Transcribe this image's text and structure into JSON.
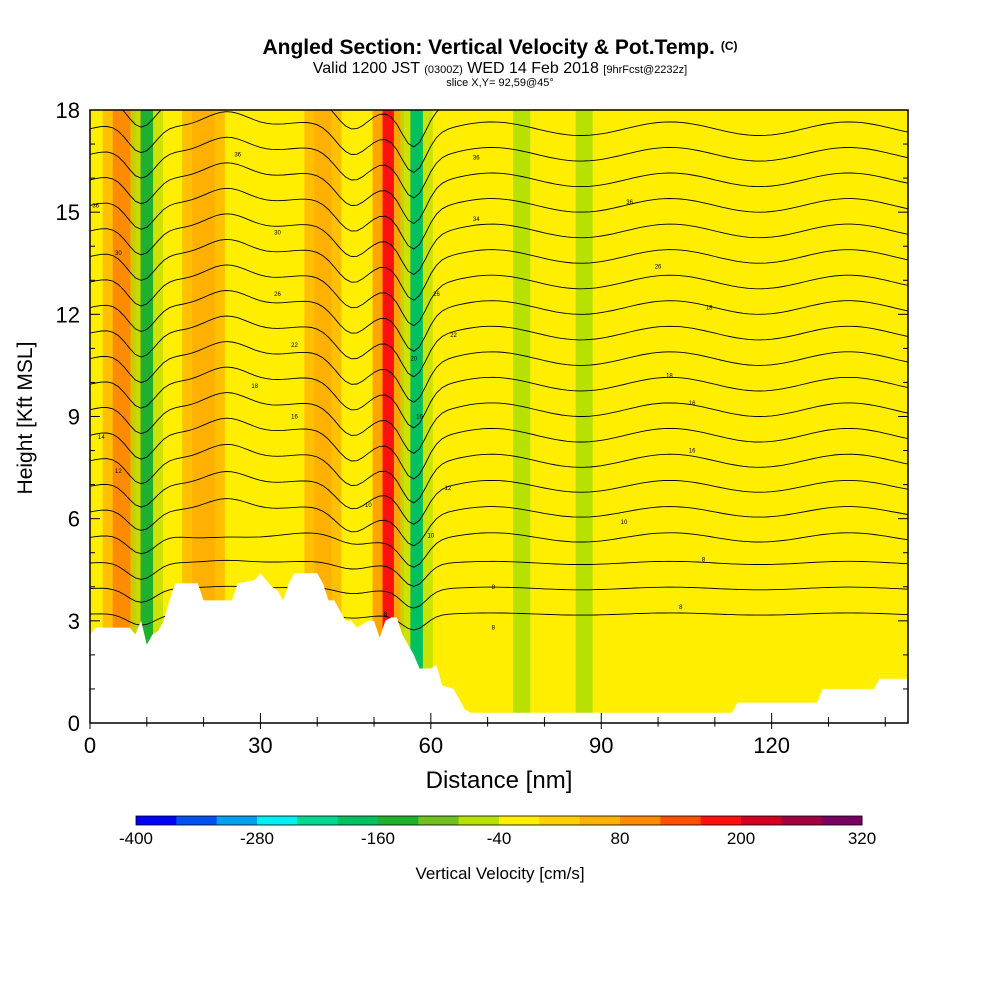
{
  "chart_data": {
    "type": "heatmap",
    "title": "Angled Section: Vertical Velocity & Pot.Temp.",
    "title_unit": "(C)",
    "subtitle_prefix": "Valid 1200 JST",
    "subtitle_utc": "(0300Z)",
    "subtitle_date": "WED 14 Feb 2018",
    "subtitle_fcst": "[9hrFcst@2232z]",
    "slice": "slice X,Y= 92,59@45°",
    "xlabel": "Distance [nm]",
    "ylabel": "Height [Kft MSL]",
    "xlim": [
      0,
      144
    ],
    "ylim": [
      0,
      18
    ],
    "xticks": [
      0,
      30,
      60,
      90,
      120
    ],
    "yticks": [
      0,
      3,
      6,
      9,
      12,
      15,
      18
    ],
    "background_color": "#ffee00",
    "colorbar": {
      "label": "Vertical Velocity [cm/s]",
      "tick_labels": [
        "-400",
        "-280",
        "-160",
        "-40",
        "80",
        "200",
        "320"
      ],
      "levels": [
        -400,
        -360,
        -320,
        -280,
        -240,
        -200,
        -160,
        -120,
        -80,
        -40,
        0,
        40,
        80,
        120,
        160,
        200,
        240,
        280,
        320
      ],
      "colors": [
        "#0000ff",
        "#0050f0",
        "#00a0f0",
        "#00eeee",
        "#00d890",
        "#00c060",
        "#20b030",
        "#70c020",
        "#b8e000",
        "#ffee00",
        "#ffd000",
        "#ffb000",
        "#ff8c00",
        "#ff5000",
        "#ff1010",
        "#d00020",
        "#a00040",
        "#780060"
      ]
    },
    "bands": [
      {
        "x": 6,
        "width": 4,
        "value": 110
      },
      {
        "x": 10,
        "width": 2.2,
        "value": -150
      },
      {
        "x": 20,
        "width": 4,
        "value": 60
      },
      {
        "x": 41,
        "width": 3,
        "value": 60
      },
      {
        "x": 52.5,
        "width": 2,
        "value": 190
      },
      {
        "x": 57.5,
        "width": 2.2,
        "value": -170
      },
      {
        "x": 76,
        "width": 3,
        "value": -60
      },
      {
        "x": 87,
        "width": 3,
        "value": -60
      }
    ],
    "terrain": [
      [
        0,
        2.6
      ],
      [
        1,
        2.8
      ],
      [
        7,
        2.8
      ],
      [
        8,
        2.6
      ],
      [
        9,
        3.0
      ],
      [
        10,
        2.3
      ],
      [
        11,
        2.6
      ],
      [
        12,
        2.7
      ],
      [
        13,
        3.0
      ],
      [
        14,
        3.6
      ],
      [
        15,
        4.1
      ],
      [
        19,
        4.1
      ],
      [
        20,
        3.6
      ],
      [
        25,
        3.6
      ],
      [
        26,
        4.1
      ],
      [
        29,
        4.2
      ],
      [
        30,
        4.4
      ],
      [
        31,
        4.2
      ],
      [
        32,
        4.0
      ],
      [
        33,
        3.9
      ],
      [
        34,
        3.6
      ],
      [
        35,
        4.1
      ],
      [
        36,
        4.4
      ],
      [
        40,
        4.4
      ],
      [
        41,
        4.1
      ],
      [
        42,
        3.6
      ],
      [
        43,
        3.6
      ],
      [
        44,
        3.3
      ],
      [
        45,
        3.0
      ],
      [
        46,
        3.0
      ],
      [
        47,
        2.8
      ],
      [
        48,
        2.9
      ],
      [
        49,
        3.0
      ],
      [
        50,
        3.0
      ],
      [
        51,
        2.5
      ],
      [
        52,
        3.0
      ],
      [
        53,
        3.1
      ],
      [
        54,
        3.1
      ],
      [
        55,
        2.6
      ],
      [
        56,
        2.3
      ],
      [
        57,
        2.0
      ],
      [
        58,
        1.6
      ],
      [
        60,
        1.6
      ],
      [
        61,
        1.7
      ],
      [
        62,
        1.1
      ],
      [
        64,
        1.0
      ],
      [
        65,
        0.7
      ],
      [
        66,
        0.4
      ],
      [
        67,
        0.3
      ],
      [
        113,
        0.3
      ],
      [
        114,
        0.6
      ],
      [
        128,
        0.6
      ],
      [
        129,
        1.0
      ],
      [
        138,
        1.0
      ],
      [
        139,
        1.3
      ],
      [
        144,
        1.3
      ]
    ],
    "contour_labels": [
      {
        "x": 1,
        "y": 15.2,
        "text": "36"
      },
      {
        "x": 5,
        "y": 13.8,
        "text": "30"
      },
      {
        "x": 26,
        "y": 16.7,
        "text": "36"
      },
      {
        "x": 33,
        "y": 14.4,
        "text": "30"
      },
      {
        "x": 33,
        "y": 12.6,
        "text": "26"
      },
      {
        "x": 36,
        "y": 11.1,
        "text": "22"
      },
      {
        "x": 29,
        "y": 9.9,
        "text": "18"
      },
      {
        "x": 36,
        "y": 9.0,
        "text": "16"
      },
      {
        "x": 68,
        "y": 16.6,
        "text": "36"
      },
      {
        "x": 68,
        "y": 14.8,
        "text": "34"
      },
      {
        "x": 61,
        "y": 12.6,
        "text": "26"
      },
      {
        "x": 64,
        "y": 11.4,
        "text": "22"
      },
      {
        "x": 57,
        "y": 10.7,
        "text": "20"
      },
      {
        "x": 58,
        "y": 9.0,
        "text": "16"
      },
      {
        "x": 63,
        "y": 6.9,
        "text": "12"
      },
      {
        "x": 60,
        "y": 5.5,
        "text": "10"
      },
      {
        "x": 49,
        "y": 6.4,
        "text": "10"
      },
      {
        "x": 52,
        "y": 3.2,
        "text": "8"
      },
      {
        "x": 71,
        "y": 4.0,
        "text": "8"
      },
      {
        "x": 71,
        "y": 2.8,
        "text": "8"
      },
      {
        "x": 95,
        "y": 15.3,
        "text": "36"
      },
      {
        "x": 100,
        "y": 13.4,
        "text": "26"
      },
      {
        "x": 109,
        "y": 12.2,
        "text": "18"
      },
      {
        "x": 102,
        "y": 10.2,
        "text": "18"
      },
      {
        "x": 106,
        "y": 9.4,
        "text": "16"
      },
      {
        "x": 106,
        "y": 8.0,
        "text": "16"
      },
      {
        "x": 94,
        "y": 5.9,
        "text": "10"
      },
      {
        "x": 108,
        "y": 4.8,
        "text": "8"
      },
      {
        "x": 104,
        "y": 3.4,
        "text": "8"
      },
      {
        "x": 2,
        "y": 8.4,
        "text": "14"
      },
      {
        "x": 5,
        "y": 7.4,
        "text": "12"
      }
    ]
  }
}
